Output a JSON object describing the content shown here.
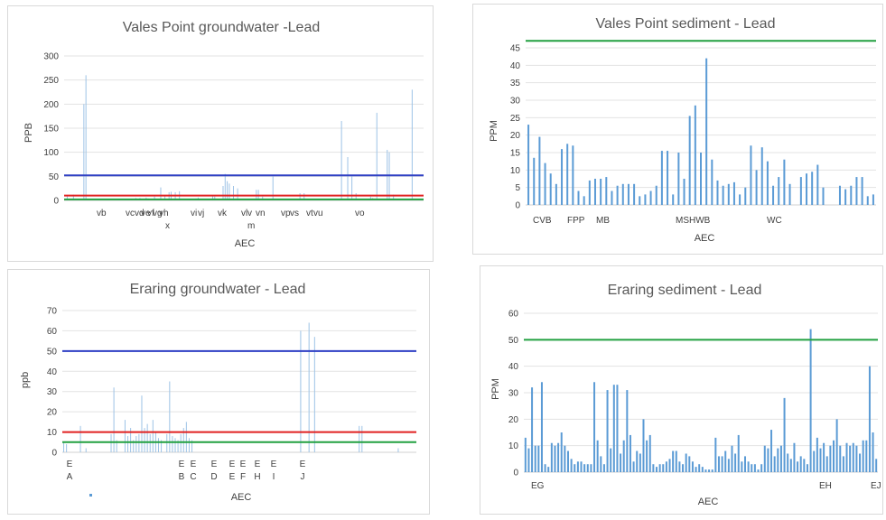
{
  "chart_data": [
    {
      "type": "bar",
      "title": "Vales Point groundwater -Lead",
      "xlabel": "AEC",
      "ylabel": "PPB",
      "ylim": [
        0,
        300
      ],
      "yticks": [
        0,
        50,
        100,
        150,
        200,
        250,
        300
      ],
      "grid": true,
      "bar_color": "#9dc3e6",
      "category_labels": [
        "vb",
        "vcvd",
        "ve",
        "vf",
        "vg",
        "vh",
        "x",
        "vi",
        "vj",
        "vk",
        "vl",
        "v",
        "m",
        "vn",
        "vp",
        "vs",
        "vt",
        "vu",
        "vo"
      ],
      "values": [
        0,
        10,
        0,
        0,
        12,
        0,
        0,
        0,
        0,
        200,
        260,
        0,
        0,
        0,
        0,
        0,
        0,
        0,
        0,
        0,
        0,
        0,
        0,
        0,
        0,
        0,
        3,
        0,
        0,
        2,
        0,
        0,
        2,
        0,
        5,
        0,
        5,
        0,
        0,
        6,
        4,
        0,
        0,
        8,
        0,
        0,
        27,
        0,
        10,
        0,
        17,
        18,
        0,
        17,
        0,
        19,
        0,
        0,
        0,
        0,
        3,
        0,
        0,
        4,
        6,
        0,
        0,
        0,
        0,
        0,
        0,
        10,
        8,
        0,
        0,
        0,
        30,
        55,
        40,
        35,
        0,
        30,
        0,
        25,
        0,
        0,
        0,
        0,
        0,
        0,
        0,
        0,
        22,
        22,
        0,
        8,
        0,
        0,
        0,
        0,
        50,
        0,
        0,
        0,
        0,
        0,
        0,
        0,
        0,
        0,
        0,
        0,
        0,
        15,
        0,
        15,
        0,
        0,
        0,
        0,
        0,
        0,
        0,
        0,
        0,
        0,
        0,
        0,
        0,
        0,
        0,
        0,
        0,
        165,
        0,
        0,
        90,
        0,
        50,
        0,
        15,
        0,
        0,
        0,
        0,
        0,
        0,
        8,
        5,
        0,
        182,
        0,
        0,
        0,
        0,
        105,
        100,
        0,
        12,
        0,
        0,
        0,
        0,
        0,
        0,
        0,
        0,
        230,
        0,
        0,
        0,
        0,
        0
      ],
      "reference_lines": [
        {
          "value": 52,
          "color": "#2e3fc4"
        },
        {
          "value": 10,
          "color": "#e02020"
        },
        {
          "value": 2,
          "color": "#22a040"
        }
      ]
    },
    {
      "type": "bar",
      "title": "Vales Point sediment - Lead",
      "xlabel": "AEC",
      "ylabel": "PPM",
      "ylim": [
        0,
        45
      ],
      "yticks": [
        0,
        5,
        10,
        15,
        20,
        25,
        30,
        35,
        40,
        45
      ],
      "grid": true,
      "bar_color": "#5b9bd5",
      "category_labels": [
        "CVB",
        "FPP",
        "MB",
        "MSHWB",
        "WC"
      ],
      "values": [
        23,
        13.5,
        19.5,
        12,
        9,
        6,
        16,
        17.5,
        17,
        4,
        2.5,
        7,
        7.5,
        7.5,
        8,
        4,
        5.5,
        6,
        6,
        6,
        2.5,
        3,
        4,
        5.5,
        15.5,
        15.5,
        3,
        15,
        7.5,
        25.5,
        28.5,
        15,
        42,
        13,
        7,
        5.5,
        6,
        6.5,
        3,
        5,
        17,
        10,
        16.5,
        12.5,
        5.5,
        8,
        13,
        6,
        0,
        8,
        9,
        9.5,
        11.5,
        5,
        0,
        0,
        5.5,
        4.5,
        5.5,
        8,
        8,
        2.5,
        3
      ],
      "reference_lines": [
        {
          "value": 47,
          "color": "#22a040"
        }
      ]
    },
    {
      "type": "bar",
      "title": "Eraring groundwater - Lead",
      "xlabel": "AEC",
      "ylabel": "ppb",
      "ylim": [
        0,
        70
      ],
      "yticks": [
        0,
        10,
        20,
        30,
        40,
        50,
        60,
        70
      ],
      "grid": true,
      "bar_color": "#9dc3e6",
      "category_labels": [
        {
          "line1": "E",
          "line2": "A"
        },
        {
          "line1": "E",
          "line2": "B"
        },
        {
          "line1": "E",
          "line2": "C"
        },
        {
          "line1": "E",
          "line2": "D"
        },
        {
          "line1": "E",
          "line2": "E"
        },
        {
          "line1": "E",
          "line2": "F"
        },
        {
          "line1": "E",
          "line2": "H"
        },
        {
          "line1": "E",
          "line2": "I"
        },
        {
          "line1": "E",
          "line2": "J"
        }
      ],
      "values": [
        5,
        4,
        0,
        0,
        0,
        0,
        13,
        0,
        2,
        0,
        0,
        0,
        0,
        0,
        0,
        0,
        0,
        9,
        32,
        6,
        0,
        0,
        16,
        8,
        12,
        6,
        8,
        9,
        28,
        12,
        14,
        9,
        16,
        10,
        7,
        6,
        0,
        9,
        35,
        8,
        7,
        6,
        9,
        12,
        15,
        7,
        6,
        0,
        0,
        0,
        0,
        0,
        0,
        0,
        0,
        0,
        0,
        0,
        0,
        0,
        0,
        0,
        0,
        0,
        0,
        0,
        0,
        0,
        0,
        0,
        0,
        0,
        0,
        0,
        0,
        0,
        0,
        0,
        0,
        0,
        0,
        0,
        0,
        0,
        0,
        60,
        0,
        0,
        64,
        0,
        57,
        0,
        0,
        0,
        0,
        0,
        0,
        0,
        0,
        0,
        0,
        0,
        0,
        0,
        0,
        0,
        13,
        13,
        0,
        0,
        0,
        0,
        0,
        0,
        0,
        0,
        0,
        0,
        0,
        0,
        2,
        0,
        0,
        0,
        0,
        0,
        0
      ],
      "reference_lines": [
        {
          "value": 50,
          "color": "#2e3fc4"
        },
        {
          "value": 10,
          "color": "#e02020"
        },
        {
          "value": 5,
          "color": "#22a040"
        }
      ]
    },
    {
      "type": "bar",
      "title": "Eraring sediment - Lead",
      "xlabel": "AEC",
      "ylabel": "PPM",
      "ylim": [
        0,
        60
      ],
      "yticks": [
        0,
        10,
        20,
        30,
        40,
        50,
        60
      ],
      "grid": true,
      "bar_color": "#5b9bd5",
      "category_labels": [
        "EG",
        "EH",
        "EJ"
      ],
      "values": [
        13,
        9,
        32,
        10,
        10,
        34,
        3,
        2,
        11,
        10,
        11,
        15,
        10,
        8,
        5,
        3,
        4,
        4,
        3,
        3,
        3,
        34,
        12,
        6,
        3,
        31,
        9,
        33,
        33,
        7,
        12,
        31,
        14,
        4,
        8,
        7,
        20,
        12,
        14,
        3,
        2,
        3,
        3,
        4,
        5,
        8,
        8,
        4,
        3,
        7,
        6,
        4,
        2,
        3,
        2,
        1,
        1,
        1,
        13,
        6,
        6,
        8,
        5,
        10,
        7,
        14,
        4,
        6,
        4,
        3,
        3,
        1,
        3,
        10,
        9,
        16,
        6,
        9,
        10,
        28,
        7,
        5,
        11,
        4,
        6,
        5,
        3,
        54,
        8,
        13,
        9,
        11,
        6,
        10,
        12,
        20,
        10,
        6,
        11,
        10,
        11,
        10,
        7,
        12,
        12,
        40,
        15,
        5
      ],
      "reference_lines": [
        {
          "value": 50,
          "color": "#22a040"
        }
      ]
    }
  ]
}
